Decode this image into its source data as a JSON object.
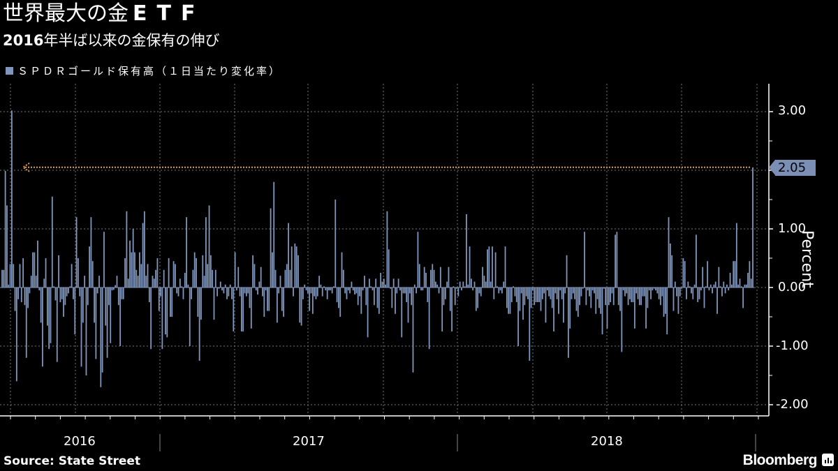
{
  "header": {
    "title_jp": "世界最大の金",
    "title_latin": "ETF",
    "subtitle_num": "2016",
    "subtitle_jp": "年半ば以来の金保有の伸び"
  },
  "legend": {
    "label": "ＳＰＤＲゴールド保有高（１日当たり変化率）",
    "color": "#8096bc"
  },
  "axis": {
    "ylabel": "Percent",
    "yticks": [
      "3.00",
      "1.00",
      "0.00",
      "-1.00",
      "-2.00"
    ],
    "years": [
      "2016",
      "2017",
      "2018"
    ]
  },
  "callout": {
    "value": "2.05",
    "color": "#7a8fb3",
    "arrow_color": "#e8a050"
  },
  "footer": {
    "source": "Source: State Street",
    "brand": "Bloomberg"
  },
  "chart_data": {
    "type": "bar",
    "title": "世界最大の金ETF",
    "subtitle": "2016年半ば以来の金保有の伸び",
    "series_name": "ＳＰＤＲゴールド保有高（１日当たり変化率）",
    "xlabel": "",
    "ylabel": "Percent",
    "ylim": [
      -2.2,
      3.5
    ],
    "yticks": [
      -2.0,
      -1.0,
      0.0,
      1.0,
      2.0,
      3.0
    ],
    "ytick_labels_shown": [
      "3.00",
      "1.00",
      "0.00",
      "-1.00",
      "-2.00"
    ],
    "x_range": "mid-2016 to Oct 2018 (daily)",
    "year_labels": [
      "2016",
      "2017",
      "2018"
    ],
    "grid": true,
    "annotation": {
      "text": "2.05",
      "note": "latest daily change; dotted arrow back to mid-2016 peak of similar size"
    },
    "values": [
      0.3,
      0.3,
      1.99,
      1.4,
      0.05,
      0.4,
      3.02,
      0.4,
      -0.4,
      -1.6,
      -0.2,
      0.4,
      -0.25,
      0.5,
      -0.3,
      -1.2,
      -0.35,
      -0.1,
      0.2,
      0.6,
      0.6,
      0.2,
      0.8,
      -0.05,
      -0.6,
      -1.35,
      0.15,
      0.5,
      -0.65,
      -1.05,
      -0.95,
      1.55,
      0.02,
      -0.22,
      -1.27,
      0.55,
      -0.25,
      -0.2,
      -0.5,
      -0.3,
      -0.15,
      -0.1,
      0.02,
      0.4,
      -0.2,
      -0.8,
      1.2,
      0.5,
      -0.15,
      -1.35,
      -0.6,
      0.2,
      -1.5,
      -0.3,
      0.7,
      1.2,
      0.45,
      -0.6,
      -1.22,
      -0.1,
      0.2,
      -1.7,
      -1.45,
      0.95,
      -0.65,
      -1.2,
      -0.3,
      -0.95,
      -0.05,
      -0.04,
      0.04,
      0.2,
      -0.3,
      -1.0,
      -0.2,
      -0.2,
      0.5,
      1.3,
      0.15,
      0.8,
      0.6,
      1.0,
      0.6,
      0.3,
      0.2,
      0.6,
      0.4,
      1.1,
      1.3,
      0.2,
      0.4,
      -0.25,
      -1.05,
      0.2,
      0.15,
      0.3,
      0.5,
      -0.4,
      -0.15,
      -1.05,
      0.3,
      -0.8,
      -0.85,
      0.5,
      -0.5,
      -0.5,
      0.45,
      0.4,
      -0.1,
      -0.15,
      0.15,
      0.02,
      -0.2,
      0.25,
      1.2,
      0.05,
      -1.0,
      -0.2,
      0.3,
      0.6,
      0.5,
      -0.5,
      -1.25,
      -0.55,
      0.55,
      0.2,
      1.2,
      0.4,
      1.4,
      0.55,
      0.3,
      -0.55,
      0.3,
      -0.15,
      -0.02,
      0.1,
      -0.05,
      -0.1,
      0.05,
      -0.2,
      -0.15,
      0.05,
      -0.2,
      -0.75,
      0.6,
      -0.05,
      0.35,
      -0.15,
      -0.75,
      -0.75,
      -0.1,
      -0.15,
      -0.1,
      -0.35,
      -0.7,
      0.55,
      0.4,
      -0.05,
      -0.12,
      0.1,
      0.35,
      -0.15,
      -0.5,
      -0.05,
      -0.4,
      -0.4,
      1.35,
      0.6,
      1.8,
      0.3,
      -0.6,
      -0.1,
      0.2,
      -0.4,
      -0.5,
      0.3,
      0.4,
      1.1,
      0.3,
      0.7,
      -0.15,
      0.75,
      0.7,
      0.55,
      -0.6,
      -0.65,
      -0.2,
      0.05,
      -0.05,
      -0.1,
      -0.4,
      -0.1,
      -0.45,
      -0.15,
      -0.2,
      -0.15,
      0.2,
      0.05,
      -0.15,
      0.02,
      -0.05,
      -0.2,
      -0.05,
      -0.05,
      -0.1,
      0.02,
      1.5,
      -0.25,
      -0.35,
      -0.5,
      0.6,
      0.3,
      -0.1,
      -0.2,
      -0.05,
      -0.1,
      0.1,
      -0.05,
      -0.12,
      -0.1,
      -0.3,
      -0.15,
      -0.45,
      -0.05,
      0.2,
      -0.3,
      -0.85,
      0.15,
      0.02,
      -0.05,
      -0.3,
      0.15,
      -0.35,
      -0.45,
      0.25,
      0.1,
      0.15,
      0.05,
      1.3,
      0.65,
      -0.02,
      -0.35,
      0.15,
      -0.45,
      -0.1,
      0.15,
      -0.05,
      -0.85,
      -0.1,
      -0.1,
      -0.25,
      -0.6,
      -0.1,
      -0.3,
      -1.45,
      0.05,
      -0.1,
      0.95,
      0.4,
      -0.05,
      -0.05,
      0.35,
      0.25,
      -0.25,
      -1.05,
      0.3,
      0.4,
      0.3,
      0.1,
      0.05,
      -0.1,
      0.35,
      -0.75,
      -0.3,
      -0.2,
      0.1,
      0.35,
      -0.4,
      -0.75,
      0.02,
      -0.3,
      -0.02,
      -0.15,
      0.1,
      -0.05,
      0.1,
      0.02,
      1.25,
      0.05,
      0.7,
      0.15,
      -0.05,
      0.1,
      -0.4,
      -0.35,
      -0.1,
      -0.15,
      0.35,
      0.2,
      0.1,
      0.65,
      0.7,
      0.1,
      0.7,
      -0.2,
      0.6,
      0.02,
      -0.1,
      -0.05,
      -0.1,
      0.1,
      0.7,
      -0.35,
      -0.45,
      -0.45,
      -0.25,
      0.02,
      -0.15,
      -0.25,
      -1.0,
      -0.4,
      -0.1,
      -0.55,
      -0.3,
      -0.15,
      -0.2,
      -1.25,
      -0.35,
      -0.05,
      -0.3,
      -0.25,
      -0.25,
      -0.25,
      -0.4,
      -0.2,
      -0.1,
      -0.6,
      -0.05,
      -0.15,
      -0.2,
      -0.35,
      -0.75,
      -0.1,
      -0.2,
      -0.45,
      -0.05,
      -0.2,
      -0.6,
      -0.1,
      0.55,
      -1.2,
      -0.7,
      -0.2,
      -0.1,
      -0.2,
      -0.4,
      -0.5,
      -0.3,
      -0.15,
      -0.02,
      0.95,
      -0.3,
      -0.05,
      -0.15,
      -0.35,
      -0.05,
      -0.1,
      -0.45,
      -0.2,
      -0.35,
      -0.45,
      -0.8,
      -0.02,
      -0.3,
      -0.7,
      -0.3,
      -0.25,
      -0.1,
      -0.3,
      0.9,
      0.95,
      -0.3,
      -0.4,
      -1.1,
      -0.05,
      -0.15,
      -0.1,
      -0.3,
      -0.2,
      -0.25,
      -0.25,
      -0.7,
      -0.1,
      -0.2,
      -0.3,
      -0.3,
      -0.15,
      -0.15,
      -0.7,
      -0.35,
      -0.05,
      -0.2,
      -0.05,
      -0.02,
      -0.05,
      -0.1,
      -0.2,
      -0.3,
      -0.15,
      -0.5,
      -0.45,
      -0.8,
      1.2,
      0.75,
      0.55,
      -0.4,
      0.1,
      -0.15,
      -0.45,
      -0.15,
      -0.02,
      0.5,
      0.45,
      -0.2,
      0.1,
      0.02,
      -0.1,
      -0.2,
      0.05,
      0.9,
      -0.25,
      -0.2,
      -0.05,
      0.35,
      -0.35,
      0.02,
      0.45,
      -0.05,
      0.05,
      -0.1,
      0.05,
      0.1,
      -0.45,
      0.35,
      0.02,
      -0.15,
      0.1,
      -0.1,
      0.05,
      -0.05,
      0.25,
      0.05,
      0.45,
      0.45,
      1.1,
      0.05,
      0.15,
      0.02,
      -0.35,
      0.05,
      0.05,
      0.25,
      0.45,
      0.15,
      2.05
    ]
  }
}
